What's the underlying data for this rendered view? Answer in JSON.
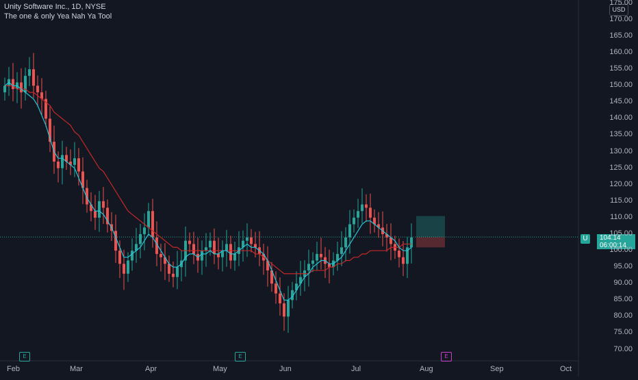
{
  "header": {
    "title": "Unity Software Inc., 1D, NYSE",
    "indicator": "The one & only Yea Nah Ya Tool"
  },
  "currency": "USD",
  "price_badge": {
    "symbol": "U",
    "price": "104.14",
    "countdown": "06:00:14"
  },
  "events": [
    "E",
    "E",
    "E"
  ],
  "colors": {
    "up": "#26a69a",
    "down": "#ef5350",
    "ema_fast": "#2196f3",
    "ema_mid": "#26c6da",
    "ema_slow": "#c62828",
    "bg": "#131722"
  },
  "chart_data": {
    "type": "candlestick",
    "ylim": [
      67,
      176
    ],
    "yticks": [
      "70.00",
      "75.00",
      "80.00",
      "85.00",
      "90.00",
      "95.00",
      "100.00",
      "105.00",
      "110.00",
      "115.00",
      "120.00",
      "125.00",
      "130.00",
      "135.00",
      "140.00",
      "145.00",
      "150.00",
      "155.00",
      "160.00",
      "165.00",
      "170.00",
      "175.00"
    ],
    "xticks": [
      "Feb",
      "Mar",
      "Apr",
      "May",
      "Jun",
      "Jul",
      "Aug",
      "Sep",
      "Oct"
    ],
    "closes": [
      150,
      152,
      149,
      151,
      148,
      153,
      155,
      150,
      148,
      146,
      140,
      133,
      127,
      125,
      129,
      127,
      126,
      128,
      124,
      119,
      114,
      112,
      110,
      115,
      113,
      108,
      106,
      100,
      96,
      93,
      97,
      100,
      102,
      105,
      107,
      112,
      104,
      99,
      98,
      96,
      93,
      92,
      95,
      97,
      103,
      102,
      99,
      97,
      100,
      101,
      103,
      99,
      98,
      100,
      102,
      97,
      99,
      101,
      103,
      104,
      102,
      101,
      99,
      97,
      94,
      90,
      87,
      84,
      80,
      85,
      88,
      90,
      92,
      94,
      96,
      97,
      99,
      98,
      96,
      95,
      97,
      99,
      101,
      104,
      108,
      110,
      112,
      114,
      113,
      110,
      108,
      107,
      105,
      104,
      102,
      100,
      98,
      96,
      101,
      104
    ],
    "ema_fast": [
      150,
      151,
      150,
      150,
      149,
      148,
      147,
      146,
      144,
      141,
      138,
      134,
      130,
      128,
      128,
      127,
      126,
      125,
      122,
      119,
      116,
      114,
      112,
      112,
      111,
      109,
      107,
      104,
      101,
      98,
      98,
      99,
      100,
      101,
      103,
      105,
      104,
      102,
      100,
      98,
      96,
      95,
      95,
      96,
      98,
      99,
      99,
      98,
      99,
      99,
      100,
      99,
      99,
      100,
      100,
      99,
      99,
      100,
      101,
      102,
      101,
      101,
      100,
      99,
      97,
      94,
      91,
      88,
      85,
      85,
      86,
      88,
      90,
      92,
      93,
      95,
      96,
      97,
      97,
      96,
      96,
      97,
      98,
      100,
      102,
      104,
      106,
      108,
      109,
      109,
      108,
      107,
      106,
      105,
      104,
      103,
      101,
      100,
      100,
      101
    ],
    "ema_slow": [
      150,
      150,
      150,
      149,
      149,
      149,
      148,
      148,
      147,
      146,
      145,
      144,
      142,
      141,
      140,
      139,
      138,
      136,
      135,
      133,
      131,
      129,
      127,
      125,
      124,
      122,
      120,
      118,
      116,
      114,
      112,
      111,
      110,
      109,
      108,
      107,
      106,
      105,
      104,
      103,
      102,
      101,
      101,
      100,
      100,
      100,
      100,
      100,
      100,
      100,
      100,
      100,
      100,
      100,
      100,
      100,
      100,
      100,
      100,
      100,
      100,
      99,
      99,
      98,
      97,
      96,
      95,
      94,
      93,
      93,
      93,
      93,
      93,
      93,
      93,
      94,
      94,
      94,
      94,
      95,
      95,
      96,
      96,
      97,
      97,
      98,
      98,
      99,
      99,
      100,
      100,
      100,
      100,
      100,
      101,
      101,
      101,
      102,
      102,
      102
    ],
    "position": {
      "entry": 104.14,
      "target": 110.5,
      "stop": 101.0
    }
  }
}
